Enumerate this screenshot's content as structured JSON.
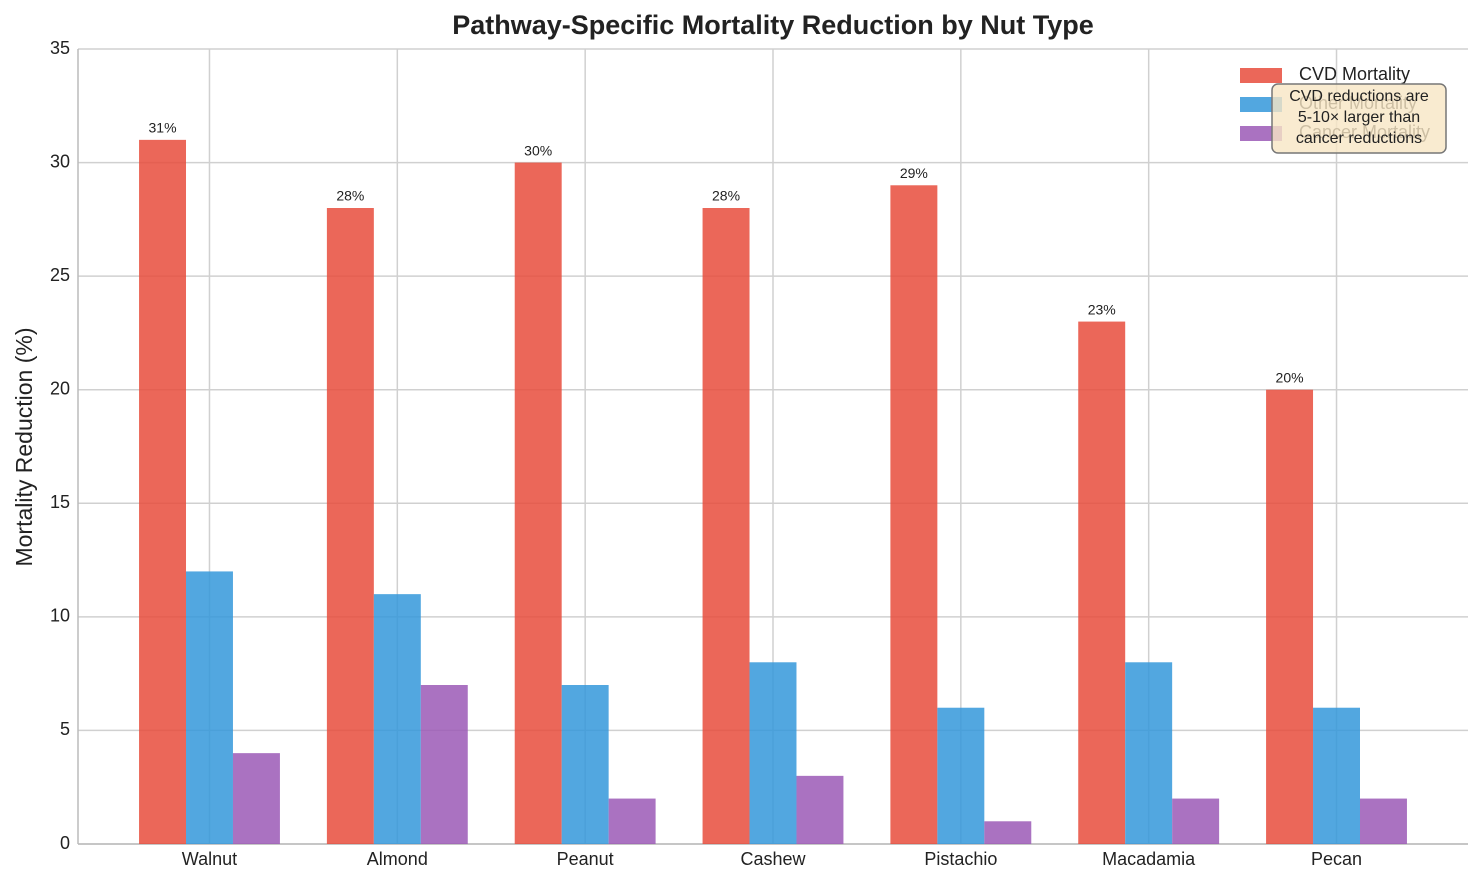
{
  "chart_data": {
    "type": "bar",
    "title": "Pathway-Specific Mortality Reduction by Nut Type",
    "y_label": "Mortality Reduction (%)",
    "categories": [
      "Walnut",
      "Almond",
      "Peanut",
      "Cashew",
      "Pistachio",
      "Macadamia",
      "Pecan"
    ],
    "series": [
      {
        "name": "CVD Mortality",
        "color": "#e74c3c",
        "values": [
          31,
          28,
          30,
          28,
          29,
          23,
          20
        ],
        "value_labels": [
          "31%",
          "28%",
          "30%",
          "28%",
          "29%",
          "23%",
          "20%"
        ]
      },
      {
        "name": "Other Mortality",
        "color": "#3498db",
        "values": [
          12,
          11,
          7,
          8,
          6,
          8,
          6
        ]
      },
      {
        "name": "Cancer Mortality",
        "color": "#9b59b6",
        "values": [
          4,
          7,
          2,
          3,
          1,
          2,
          2
        ]
      }
    ],
    "ylim": [
      0,
      35
    ],
    "yticks": [
      0,
      5,
      10,
      15,
      20,
      25,
      30,
      35
    ],
    "grid": true,
    "legend": "upper right",
    "annotation": [
      "CVD reductions are",
      "5-10× larger than",
      "cancer reductions"
    ]
  }
}
